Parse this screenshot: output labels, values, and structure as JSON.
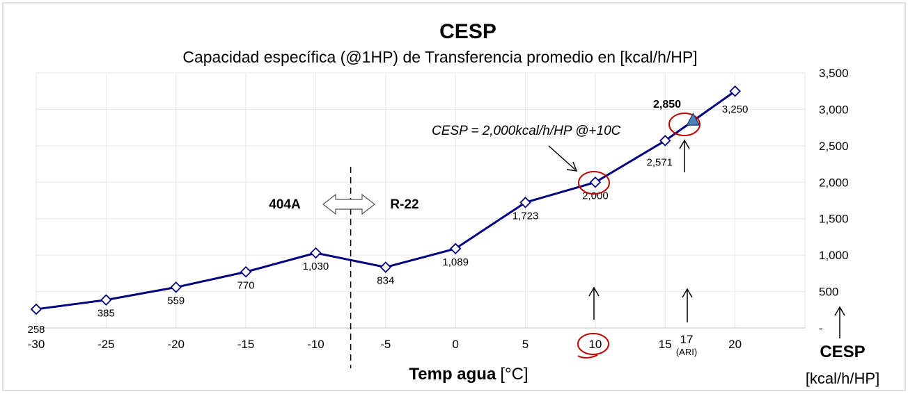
{
  "chart_data": {
    "type": "line",
    "title": "CESP",
    "subtitle": "Capacidad específica (@1HP) de Transferencia promedio en [kcal/h/HP]",
    "xlabel_bold": "Temp agua",
    "xlabel_unit": "[°C]",
    "ylabel_bold": "CESP",
    "ylabel_unit": "[kcal/h/HP]",
    "xlim": [
      -30,
      25
    ],
    "ylim": [
      0,
      3500
    ],
    "x_ticks": [
      -30,
      -25,
      -20,
      -15,
      -10,
      -5,
      0,
      5,
      10,
      15,
      20
    ],
    "x_tick_labels": [
      "-30",
      "-25",
      "-20",
      "-15",
      "-10",
      "-5",
      "0",
      "5",
      "10",
      "15",
      "20"
    ],
    "y_ticks": [
      0,
      500,
      1000,
      1500,
      2000,
      2500,
      3000,
      3500
    ],
    "y_tick_labels": [
      "-",
      "500",
      "1,000",
      "1,500",
      "2,000",
      "2,500",
      "3,000",
      "3,500"
    ],
    "grid": true,
    "series": [
      {
        "x": [
          -30,
          -25,
          -20,
          -15,
          -10,
          -5,
          0,
          5,
          10,
          15,
          20
        ],
        "values": [
          258,
          385,
          559,
          770,
          1030,
          834,
          1089,
          1723,
          2000,
          2571,
          3250
        ],
        "labels": [
          "258",
          "385",
          "559",
          "770",
          "1,030",
          "834",
          "1,089",
          "1,723",
          "2,000",
          "2,571",
          "3,250"
        ],
        "color": "#000080"
      }
    ],
    "ari_point": {
      "x": 17,
      "value": 2850,
      "label": "2,850",
      "color": "#4f81bd"
    },
    "annotations": {
      "refrigerant_left": "404A",
      "refrigerant_right": "R-22",
      "divider_x": -7.5,
      "cesp_note": "CESP = 2,000kcal/h/HP @+10C",
      "ari_tick_label": "17",
      "ari_tick_sub": "(ARI)"
    }
  }
}
